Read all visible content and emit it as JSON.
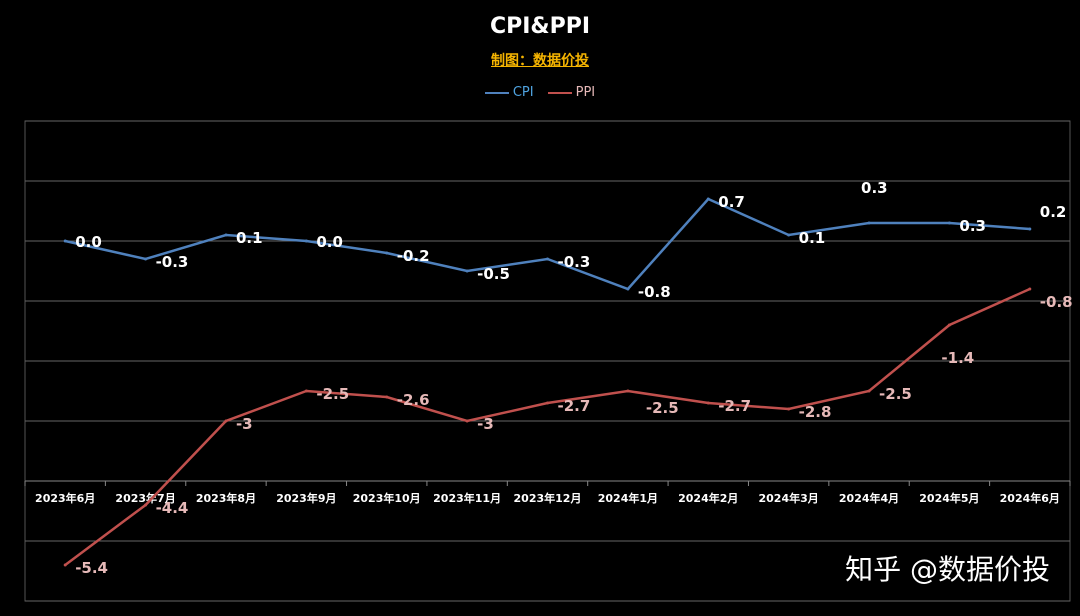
{
  "chart_data": {
    "type": "line",
    "title": "CPI&PPI",
    "subtitle": "制图：数据价投",
    "categories": [
      "2023年6月",
      "2023年7月",
      "2023年8月",
      "2023年9月",
      "2023年10月",
      "2023年11月",
      "2023年12月",
      "2024年1月",
      "2024年2月",
      "2024年3月",
      "2024年4月",
      "2024年5月",
      "2024年6月"
    ],
    "series": [
      {
        "name": "CPI",
        "color": "#4f81bd",
        "label_color": "#ffffff",
        "values": [
          0.0,
          -0.3,
          0.1,
          0.0,
          -0.2,
          -0.5,
          -0.3,
          -0.8,
          0.7,
          0.1,
          0.3,
          0.3,
          0.2
        ],
        "labels": [
          "0.0",
          "-0.3",
          "0.1",
          "0.0",
          "-0.2",
          "-0.5",
          "-0.3",
          "-0.8",
          "0.7",
          "0.1",
          "0.3",
          "0.3",
          "0.2"
        ]
      },
      {
        "name": "PPI",
        "color": "#c0504d",
        "label_color": "#e6b9b8",
        "values": [
          -5.4,
          -4.4,
          -3,
          -2.5,
          -2.6,
          -3,
          -2.7,
          -2.5,
          -2.7,
          -2.8,
          -2.5,
          -1.4,
          -0.8
        ],
        "labels": [
          "-5.4",
          "-4.4",
          "-3",
          "-2.5",
          "-2.6",
          "-3",
          "-2.7",
          "-2.5",
          "-2.7",
          "-2.8",
          "-2.5",
          "-1.4",
          "-0.8"
        ]
      }
    ],
    "ylim": [
      -6,
      2
    ],
    "y_gridlines": [
      2,
      1,
      0,
      -1,
      -2,
      -3,
      -4,
      -5,
      -6
    ],
    "category_axis_at": -4,
    "grid": true,
    "legend_position": "top-center",
    "xlabel": "",
    "ylabel": ""
  },
  "watermark": "知乎 @数据价投"
}
